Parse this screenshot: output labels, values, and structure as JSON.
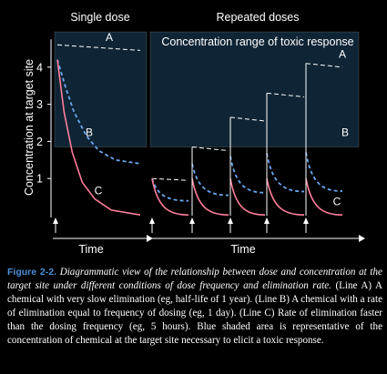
{
  "colors": {
    "background": "#000000",
    "toxic_zone": "#0f2535",
    "line_a": "#ffffff",
    "line_b": "#6aa6ee",
    "line_c": "#ff7f9c",
    "figure_number": "#4a90d9"
  },
  "chart_data": [
    {
      "type": "line",
      "title": "Single dose",
      "ylabel": "Concentration at target site",
      "xlabel": "Time",
      "ylim": [
        0,
        4.6
      ],
      "yticks": [
        "1",
        "2",
        "3",
        "4"
      ],
      "shaded_band": {
        "ymin": 1.85,
        "ymax": 4.95
      },
      "dose_arrows": 1,
      "series": [
        {
          "name": "A",
          "x": [
            0,
            1
          ],
          "y": [
            4.6,
            4.45
          ]
        },
        {
          "name": "B",
          "x": [
            0,
            0.1,
            0.2,
            0.35,
            0.5,
            0.7,
            1
          ],
          "y": [
            4.2,
            3.45,
            2.8,
            2.15,
            1.75,
            1.5,
            1.4
          ]
        },
        {
          "name": "C",
          "x": [
            0,
            0.08,
            0.18,
            0.3,
            0.45,
            0.65,
            1
          ],
          "y": [
            4.2,
            2.8,
            1.7,
            0.9,
            0.45,
            0.15,
            0.02
          ]
        }
      ]
    },
    {
      "type": "line",
      "title": "Repeated doses",
      "xlabel": "Time",
      "annotation": "Concentration range of toxic response",
      "ylim": [
        0,
        4.6
      ],
      "shaded_band": {
        "ymin": 1.85,
        "ymax": 4.95
      },
      "dose_arrows": 5,
      "series": [
        {
          "name": "A",
          "peaks": [
            1.0,
            1.85,
            2.65,
            3.3,
            4.1
          ],
          "troughs": [
            0.95,
            1.75,
            2.55,
            3.2,
            4.0
          ]
        },
        {
          "name": "B",
          "peaks": [
            1.0,
            1.4,
            1.6,
            1.68,
            1.7
          ],
          "troughs": [
            0.4,
            0.55,
            0.62,
            0.65,
            0.66
          ]
        },
        {
          "name": "C",
          "peaks": [
            1.0,
            1.0,
            1.0,
            1.0,
            1.0
          ],
          "troughs": [
            0.02,
            0.02,
            0.02,
            0.02,
            0.02
          ]
        }
      ]
    }
  ],
  "caption": {
    "figure_number": "Figure 2-2.",
    "title": "Diagrammatic view of the relationship between dose and concentration at the target site under different conditions of dose frequency and elimination rate.",
    "body": "(Line A) A chemical with very slow elimination (eg, half-life of 1 year). (Line B) A chemical with a rate of elimination equal to frequency of dosing (eg, 1 day). (Line C) Rate of elimination faster than the dosing frequency (eg, 5 hours). Blue shaded area is representative of the concentration of chemical at the target site necessary to elicit a toxic response."
  }
}
